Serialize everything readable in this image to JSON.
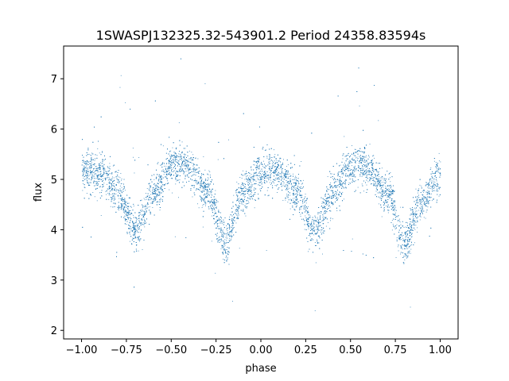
{
  "chart_data": {
    "type": "scatter",
    "title": "1SWASPJ132325.32-543901.2 Period 24358.83594s",
    "xlabel": "phase",
    "ylabel": "flux",
    "xlim": [
      -1.1,
      1.1
    ],
    "ylim": [
      1.83,
      7.65
    ],
    "xticks": [
      -1.0,
      -0.75,
      -0.5,
      -0.25,
      0.0,
      0.25,
      0.5,
      0.75,
      1.0
    ],
    "xtick_labels": [
      "−1.00",
      "−0.75",
      "−0.50",
      "−0.25",
      "0.00",
      "0.25",
      "0.50",
      "0.75",
      "1.00"
    ],
    "yticks": [
      2,
      3,
      4,
      5,
      6,
      7
    ],
    "ytick_labels": [
      "2",
      "3",
      "4",
      "5",
      "6",
      "7"
    ],
    "grid": false,
    "legend": "none",
    "point_color": "#1f77b4",
    "light_curve": {
      "description_values": "folded light curve, two cycles over phase -1 to 1",
      "x": [
        -1.0,
        -0.9,
        -0.8,
        -0.7,
        -0.6,
        -0.5,
        -0.45,
        -0.4,
        -0.3,
        -0.2,
        -0.1,
        0.0,
        0.05,
        0.1,
        0.2,
        0.3,
        0.4,
        0.5,
        0.55,
        0.6,
        0.7,
        0.8,
        0.9,
        1.0
      ],
      "y": [
        5.15,
        5.15,
        4.75,
        4.0,
        4.75,
        5.25,
        5.3,
        5.2,
        4.75,
        3.75,
        4.75,
        5.15,
        5.2,
        5.1,
        4.75,
        4.0,
        4.75,
        5.25,
        5.3,
        5.2,
        4.75,
        3.75,
        4.6,
        5.1
      ]
    },
    "series": [
      {
        "name": "",
        "n_points": 9000
      }
    ]
  }
}
